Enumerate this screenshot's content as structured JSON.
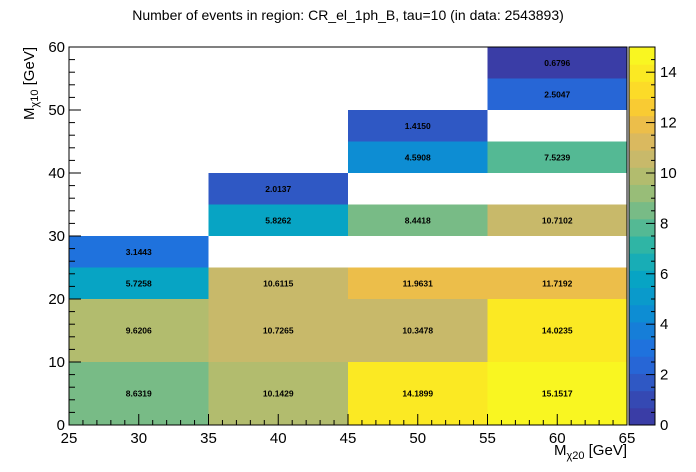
{
  "chart_data": {
    "type": "heatmap",
    "title": "Number of events in region: CR_el_1ph_B, tau=10 (in data: 2543893)",
    "xlabel": {
      "main": "M",
      "sub": "χ20",
      "unit": " [GeV]"
    },
    "ylabel": {
      "main": "M",
      "sub": "χ10",
      "unit": " [GeV]"
    },
    "xlim": [
      25,
      65
    ],
    "ylim": [
      0,
      60
    ],
    "x_ticks": [
      "25",
      "30",
      "35",
      "40",
      "45",
      "50",
      "55",
      "60",
      "65"
    ],
    "y_ticks": [
      "0",
      "10",
      "20",
      "30",
      "40",
      "50",
      "60"
    ],
    "z_range": [
      0,
      15
    ],
    "z_ticks": [
      "0",
      "2",
      "4",
      "6",
      "8",
      "10",
      "12",
      "14"
    ],
    "cells": [
      {
        "x0": 25,
        "x1": 35,
        "y0": 0,
        "y1": 10,
        "value": 8.6319,
        "label": "8.6319"
      },
      {
        "x0": 25,
        "x1": 35,
        "y0": 10,
        "y1": 20,
        "value": 9.6206,
        "label": "9.6206"
      },
      {
        "x0": 25,
        "x1": 35,
        "y0": 20,
        "y1": 25,
        "value": 5.7258,
        "label": "5.7258"
      },
      {
        "x0": 25,
        "x1": 35,
        "y0": 25,
        "y1": 30,
        "value": 3.1443,
        "label": "3.1443"
      },
      {
        "x0": 35,
        "x1": 45,
        "y0": 0,
        "y1": 10,
        "value": 10.1429,
        "label": "10.1429"
      },
      {
        "x0": 35,
        "x1": 45,
        "y0": 10,
        "y1": 20,
        "value": 10.7265,
        "label": "10.7265"
      },
      {
        "x0": 35,
        "x1": 45,
        "y0": 20,
        "y1": 25,
        "value": 10.6115,
        "label": "10.6115"
      },
      {
        "x0": 35,
        "x1": 45,
        "y0": 30,
        "y1": 35,
        "value": 5.8262,
        "label": "5.8262"
      },
      {
        "x0": 35,
        "x1": 45,
        "y0": 35,
        "y1": 40,
        "value": 2.0137,
        "label": "2.0137"
      },
      {
        "x0": 45,
        "x1": 55,
        "y0": 0,
        "y1": 10,
        "value": 14.1899,
        "label": "14.1899"
      },
      {
        "x0": 45,
        "x1": 55,
        "y0": 10,
        "y1": 20,
        "value": 10.3478,
        "label": "10.3478"
      },
      {
        "x0": 45,
        "x1": 55,
        "y0": 20,
        "y1": 25,
        "value": 11.9631,
        "label": "11.9631"
      },
      {
        "x0": 45,
        "x1": 55,
        "y0": 30,
        "y1": 35,
        "value": 8.4418,
        "label": "8.4418"
      },
      {
        "x0": 45,
        "x1": 55,
        "y0": 40,
        "y1": 45,
        "value": 4.5908,
        "label": "4.5908"
      },
      {
        "x0": 45,
        "x1": 55,
        "y0": 45,
        "y1": 50,
        "value": 1.415,
        "label": "1.4150"
      },
      {
        "x0": 55,
        "x1": 65,
        "y0": 0,
        "y1": 10,
        "value": 15.1517,
        "label": "15.1517"
      },
      {
        "x0": 55,
        "x1": 65,
        "y0": 10,
        "y1": 20,
        "value": 14.0235,
        "label": "14.0235"
      },
      {
        "x0": 55,
        "x1": 65,
        "y0": 20,
        "y1": 25,
        "value": 11.7192,
        "label": "11.7192"
      },
      {
        "x0": 55,
        "x1": 65,
        "y0": 30,
        "y1": 35,
        "value": 10.7102,
        "label": "10.7102"
      },
      {
        "x0": 55,
        "x1": 65,
        "y0": 40,
        "y1": 45,
        "value": 7.5239,
        "label": "7.5239"
      },
      {
        "x0": 55,
        "x1": 65,
        "y0": 50,
        "y1": 55,
        "value": 2.5047,
        "label": "2.5047"
      },
      {
        "x0": 55,
        "x1": 65,
        "y0": 55,
        "y1": 60,
        "value": 0.6796,
        "label": "0.6796"
      }
    ],
    "palette": [
      "#3a3da6",
      "#3549b3",
      "#2f58c4",
      "#2766d6",
      "#1f72dd",
      "#167ed8",
      "#0d8dd3",
      "#0a9acb",
      "#07a4c4",
      "#18adb6",
      "#2fb5a5",
      "#54b994",
      "#78bb86",
      "#98bd78",
      "#b2bc6e",
      "#c8b96a",
      "#dab95f",
      "#ecbe4a",
      "#f9cb33",
      "#fcdb28",
      "#fbe923",
      "#f9f621"
    ],
    "grid": false,
    "legend": "colorbar-right"
  }
}
